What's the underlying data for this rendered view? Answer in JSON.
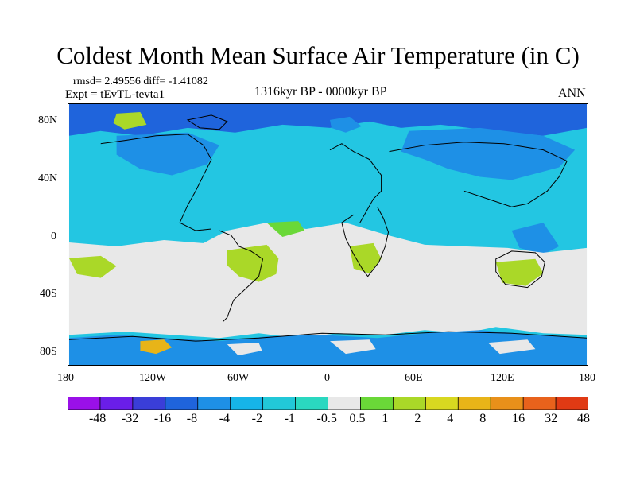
{
  "title": "Coldest Month Mean Surface Air Temperature (in C)",
  "stats": "rmsd= 2.49556  diff= -1.41082",
  "expt": "Expt = tEvTL-tevta1",
  "period": "1316kyr BP - 0000kyr BP",
  "season": "ANN",
  "axes": {
    "lat_labels": [
      "80N",
      "40N",
      "0",
      "40S",
      "80S"
    ],
    "lon_labels": [
      "180",
      "120W",
      "60W",
      "0",
      "60E",
      "120E",
      "180"
    ]
  },
  "colorbar": {
    "labels": [
      "-48",
      "-32",
      "-16",
      "-8",
      "-4",
      "-2",
      "-1",
      "-0.5",
      "0.5",
      "1",
      "2",
      "4",
      "8",
      "16",
      "32",
      "48"
    ],
    "colors": [
      "#9a10e8",
      "#6a1ee8",
      "#3a3ed8",
      "#1f64dc",
      "#1e90e6",
      "#16b4e8",
      "#22c8d8",
      "#2ad8c0",
      "#e8e8e8",
      "#6ad838",
      "#aad828",
      "#d8d820",
      "#e8b418",
      "#e8901a",
      "#e8621c",
      "#e03a14"
    ]
  },
  "map_colors": {
    "ocean_mid": "#23c6e2",
    "land_cold": "#1e90e6",
    "arctic": "#1f64dc",
    "neutral": "#e8e8e8",
    "warm_green": "#aad828",
    "warm_orange": "#e8b418"
  }
}
